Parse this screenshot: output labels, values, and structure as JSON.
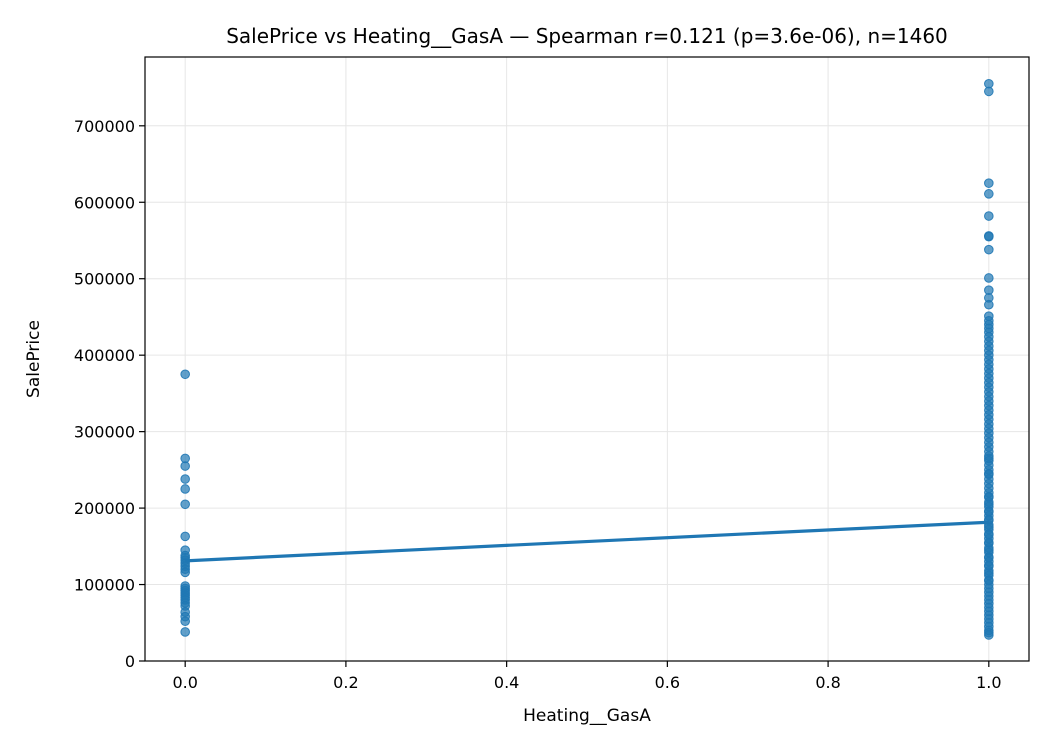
{
  "chart_data": {
    "type": "scatter",
    "title": "SalePrice vs Heating__GasA — Spearman r=0.121 (p=3.6e-06), n=1460",
    "xlabel": "Heating__GasA",
    "ylabel": "SalePrice",
    "xlim": [
      -0.05,
      1.05
    ],
    "ylim": [
      0,
      790000
    ],
    "x_ticks": [
      0.0,
      0.2,
      0.4,
      0.6,
      0.8,
      1.0
    ],
    "x_tick_labels": [
      "0.0",
      "0.2",
      "0.4",
      "0.6",
      "0.8",
      "1.0"
    ],
    "y_ticks": [
      0,
      100000,
      200000,
      300000,
      400000,
      500000,
      600000,
      700000
    ],
    "y_tick_labels": [
      "0",
      "100000",
      "200000",
      "300000",
      "400000",
      "500000",
      "600000",
      "700000"
    ],
    "grid": true,
    "colors": {
      "series": "#1f77b4"
    },
    "series": [
      {
        "x": [
          0,
          0,
          0,
          0,
          0,
          0,
          0,
          0,
          0,
          0,
          0,
          0,
          0,
          0,
          0,
          0,
          0,
          0,
          0,
          0,
          0,
          0,
          0,
          0,
          0,
          0,
          0,
          0
        ],
        "y": [
          375000,
          265000,
          255000,
          238000,
          225000,
          205000,
          163000,
          145000,
          138000,
          135000,
          132000,
          128000,
          124000,
          120000,
          116000,
          98000,
          95000,
          92000,
          89000,
          86000,
          83000,
          80000,
          76000,
          72000,
          64000,
          58000,
          52000,
          38000
        ]
      },
      {
        "x": [
          1,
          1,
          1,
          1,
          1,
          1,
          1,
          1,
          1,
          1,
          1,
          1,
          1,
          1,
          1,
          1,
          1,
          1,
          1,
          1,
          1,
          1,
          1,
          1,
          1,
          1,
          1,
          1,
          1,
          1,
          1,
          1,
          1,
          1,
          1,
          1,
          1,
          1,
          1,
          1,
          1,
          1,
          1,
          1,
          1,
          1,
          1,
          1,
          1,
          1,
          1,
          1,
          1,
          1,
          1,
          1,
          1,
          1,
          1,
          1,
          1,
          1,
          1,
          1,
          1,
          1,
          1,
          1,
          1,
          1,
          1,
          1,
          1,
          1,
          1,
          1,
          1,
          1,
          1,
          1,
          1,
          1,
          1,
          1,
          1,
          1,
          1,
          1,
          1,
          1,
          1,
          1,
          1,
          1,
          1,
          1,
          1,
          1,
          1,
          1
        ],
        "y": [
          755000,
          745000,
          625000,
          611000,
          582000,
          556000,
          555000,
          538000,
          501000,
          485000,
          475000,
          466000,
          451000,
          445000,
          440000,
          435000,
          430000,
          424000,
          418000,
          412000,
          406000,
          400000,
          394000,
          388000,
          382000,
          376000,
          370000,
          364000,
          358000,
          352000,
          346000,
          340000,
          334000,
          328000,
          322000,
          316000,
          310000,
          304000,
          298000,
          292000,
          286000,
          280000,
          274000,
          268000,
          262000,
          256000,
          250000,
          244000,
          238000,
          232000,
          226000,
          220000,
          214000,
          208000,
          202000,
          196000,
          190000,
          184000,
          178000,
          172000,
          166000,
          160000,
          154000,
          148000,
          142000,
          136000,
          130000,
          124000,
          118000,
          112000,
          106000,
          100000,
          95000,
          90000,
          85000,
          80000,
          75000,
          70000,
          65000,
          60000,
          55000,
          50000,
          45000,
          40000,
          37000,
          34000,
          205000,
          185000,
          175000,
          165000,
          155000,
          145000,
          135000,
          125000,
          115000,
          105000,
          215000,
          195000,
          245000,
          265000
        ]
      }
    ],
    "fit_line": {
      "x": [
        0,
        1
      ],
      "y": [
        131000,
        181500
      ]
    }
  }
}
